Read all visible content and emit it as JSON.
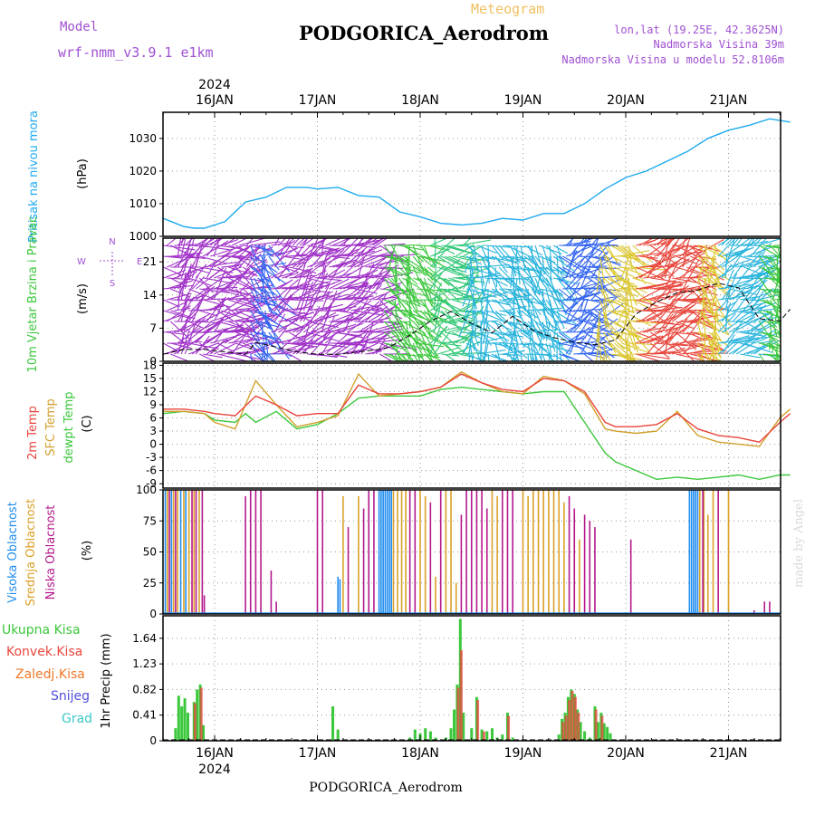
{
  "header": {
    "model_label": "Model",
    "model_value": "wrf-nmm_v3.9.1 e1km",
    "product": "Meteogram",
    "station": "PODGORICA_Aerodrom",
    "lonlat": "lon,lat (19.25E, 42.3625N)",
    "elevation": "Nadmorska Visina 39m",
    "model_elevation": "Nadmorska Visina u modelu 52.8106m",
    "footer_station": "PODGORICA_Aerodrom",
    "credit": "made by Angel",
    "year_top": "2024",
    "year_bottom": "2024"
  },
  "colors": {
    "pressure": "#1eaaee",
    "temp2m": "#e8463c",
    "sfc": "#d2a02d",
    "dewpt": "#3cc83c",
    "high_cloud": "#1e8cf0",
    "mid_cloud": "#dca028",
    "low_cloud": "#b4198c",
    "total_precip": "#3cc83c",
    "convective": "#e8463c",
    "freezing": "#f07828",
    "snow": "#5050dc",
    "hail": "#3cc8c8",
    "frame": "#000000",
    "grid": "#969696",
    "wind_label": "#a050d2"
  },
  "chart_data": [
    {
      "type": "line",
      "title": "Pritisak na nivou mora",
      "ylabel": "(hPa)",
      "ylim": [
        1000,
        1038
      ],
      "yticks": [
        "1000",
        "1010",
        "1020",
        "1030"
      ],
      "x_days": [
        "16JAN",
        "17JAN",
        "18JAN",
        "19JAN",
        "20JAN",
        "21JAN"
      ],
      "grid": true,
      "series": [
        {
          "name": "Pritisak na nivou mora",
          "x": [
            -0.5,
            -0.3,
            -0.2,
            -0.1,
            0.1,
            0.3,
            0.5,
            0.7,
            0.9,
            1.0,
            1.2,
            1.4,
            1.6,
            1.8,
            2.0,
            2.2,
            2.4,
            2.6,
            2.8,
            3.0,
            3.2,
            3.4,
            3.6,
            3.8,
            4.0,
            4.2,
            4.4,
            4.6,
            4.8,
            5.0,
            5.2,
            5.4,
            5.6
          ],
          "values": [
            1005.5,
            1003.0,
            1002.5,
            1002.5,
            1004.5,
            1010.5,
            1012.0,
            1015.0,
            1015.0,
            1014.5,
            1015.0,
            1012.5,
            1012.0,
            1007.5,
            1006.0,
            1004.0,
            1003.5,
            1004.0,
            1005.5,
            1005.0,
            1007.0,
            1007.0,
            1010.0,
            1014.5,
            1018.0,
            1020.0,
            1023.0,
            1026.0,
            1030.0,
            1032.5,
            1034.0,
            1036.0,
            1035.0
          ]
        }
      ]
    },
    {
      "type": "line",
      "title": "10m Vjetar Brzina i Pravac",
      "ylabel": "(m/s)",
      "ylim": [
        0,
        26
      ],
      "yticks": [
        "0",
        "7",
        "14",
        "21"
      ],
      "compass": [
        "N",
        "E",
        "S",
        "W"
      ],
      "grid": true,
      "series": [
        {
          "name": "Brzina",
          "x": [
            -0.5,
            -0.3,
            -0.1,
            0.1,
            0.3,
            0.4,
            0.6,
            0.8,
            1.0,
            1.2,
            1.4,
            1.6,
            1.7,
            1.9,
            2.1,
            2.3,
            2.5,
            2.7,
            2.9,
            3.1,
            3.3,
            3.5,
            3.7,
            3.9,
            4.1,
            4.3,
            4.5,
            4.7,
            4.9,
            5.1,
            5.3,
            5.5,
            5.6
          ],
          "values": [
            1.5,
            2.5,
            2.5,
            2.0,
            1.5,
            4.0,
            3.0,
            2.0,
            1.5,
            1.5,
            2.0,
            2.5,
            3.0,
            5.5,
            8.5,
            10.5,
            8.0,
            6.0,
            9.5,
            6.5,
            5.0,
            4.0,
            3.5,
            4.5,
            10.0,
            12.5,
            14.5,
            15.0,
            16.5,
            15.5,
            9.0,
            8.5,
            11.0
          ]
        }
      ],
      "arrow_groups": [
        {
          "x_range": [
            -0.5,
            0.35
          ],
          "color": "#a032c8"
        },
        {
          "x_range": [
            0.35,
            0.55
          ],
          "color": "#3264f0"
        },
        {
          "x_range": [
            0.55,
            1.65
          ],
          "color": "#a032c8"
        },
        {
          "x_range": [
            1.65,
            2.1
          ],
          "color": "#3cc83c"
        },
        {
          "x_range": [
            2.1,
            2.45
          ],
          "color": "#32c878"
        },
        {
          "x_range": [
            2.45,
            3.35
          ],
          "color": "#28b4dc"
        },
        {
          "x_range": [
            3.35,
            3.75
          ],
          "color": "#3264f0"
        },
        {
          "x_range": [
            3.75,
            4.1
          ],
          "color": "#dcc832"
        },
        {
          "x_range": [
            4.1,
            4.7
          ],
          "color": "#e8463c"
        },
        {
          "x_range": [
            4.7,
            4.9
          ],
          "color": "#dcc832"
        },
        {
          "x_range": [
            4.9,
            5.3
          ],
          "color": "#28b4dc"
        },
        {
          "x_range": [
            5.3,
            5.62
          ],
          "color": "#3cc83c"
        }
      ]
    },
    {
      "type": "line",
      "ylabels": [
        "2m Temp",
        "SFC Temp",
        "dewpt Temp"
      ],
      "unit": "(C)",
      "ylim": [
        -10,
        18.5
      ],
      "yticks": [
        "-9",
        "-6",
        "-3",
        "0",
        "3",
        "6",
        "9",
        "12",
        "15",
        "18"
      ],
      "grid": true,
      "series": [
        {
          "name": "2m Temp",
          "x": [
            -0.5,
            -0.3,
            -0.1,
            0.0,
            0.2,
            0.4,
            0.6,
            0.8,
            1.0,
            1.2,
            1.4,
            1.6,
            1.8,
            2.0,
            2.2,
            2.4,
            2.6,
            2.8,
            3.0,
            3.2,
            3.4,
            3.6,
            3.8,
            3.9,
            4.1,
            4.3,
            4.5,
            4.7,
            4.9,
            5.1,
            5.3,
            5.5,
            5.6
          ],
          "values": [
            8.0,
            8.0,
            7.5,
            7.0,
            6.5,
            11.0,
            9.0,
            6.5,
            7.0,
            7.0,
            13.5,
            11.5,
            11.5,
            12.0,
            13.0,
            16.0,
            14.0,
            12.5,
            12.0,
            15.0,
            14.5,
            12.0,
            5.0,
            4.0,
            4.0,
            4.5,
            7.0,
            3.5,
            2.0,
            1.5,
            0.5,
            5.0,
            7.0
          ]
        },
        {
          "name": "SFC Temp",
          "x": [
            -0.5,
            -0.3,
            -0.1,
            0.0,
            0.2,
            0.4,
            0.6,
            0.8,
            1.0,
            1.2,
            1.4,
            1.6,
            1.8,
            2.0,
            2.2,
            2.4,
            2.6,
            2.8,
            3.0,
            3.2,
            3.4,
            3.6,
            3.8,
            3.9,
            4.1,
            4.3,
            4.5,
            4.7,
            4.9,
            5.1,
            5.3,
            5.5,
            5.6
          ],
          "values": [
            7.5,
            7.5,
            7.0,
            5.0,
            3.5,
            14.5,
            9.0,
            4.0,
            5.0,
            6.5,
            16.0,
            11.0,
            11.5,
            12.0,
            13.0,
            16.5,
            14.0,
            12.0,
            11.5,
            15.5,
            14.5,
            11.5,
            3.5,
            3.0,
            2.5,
            3.0,
            7.5,
            2.0,
            0.5,
            0.0,
            -0.5,
            6.0,
            8.0
          ]
        },
        {
          "name": "dewpt Temp",
          "x": [
            -0.5,
            -0.3,
            -0.1,
            0.0,
            0.2,
            0.3,
            0.4,
            0.6,
            0.8,
            1.0,
            1.2,
            1.4,
            1.6,
            1.8,
            2.0,
            2.2,
            2.4,
            2.6,
            2.8,
            3.0,
            3.2,
            3.4,
            3.6,
            3.8,
            3.9,
            4.1,
            4.3,
            4.5,
            4.7,
            4.9,
            5.1,
            5.3,
            5.5,
            5.6
          ],
          "values": [
            7.0,
            7.5,
            7.0,
            5.5,
            5.0,
            7.0,
            5.0,
            7.5,
            3.5,
            4.5,
            7.0,
            10.5,
            11.0,
            11.0,
            11.0,
            12.5,
            13.0,
            12.5,
            12.0,
            11.5,
            12.0,
            12.0,
            5.0,
            -2.0,
            -4.0,
            -6.0,
            -8.0,
            -7.5,
            -8.0,
            -7.5,
            -7.0,
            -8.0,
            -7.0,
            -7.0
          ]
        }
      ]
    },
    {
      "type": "bar",
      "ylabels": [
        "Visoka Oblacnost",
        "Srednja Oblacnost",
        "Niska Oblacnost"
      ],
      "unit": "(%)",
      "ylim": [
        0,
        100
      ],
      "yticks": [
        "0",
        "25",
        "50",
        "75",
        "100"
      ],
      "grid": true,
      "series": [
        {
          "name": "Visoka Oblacnost",
          "x": [
            -0.48,
            -0.42,
            -0.33,
            -0.28,
            1.2,
            1.22,
            1.6,
            1.62,
            1.64,
            1.66,
            1.68,
            1.7,
            1.72,
            4.62,
            4.64,
            4.66,
            4.68,
            4.7
          ],
          "values": [
            100,
            100,
            100,
            100,
            30,
            28,
            100,
            100,
            100,
            100,
            100,
            100,
            100,
            100,
            100,
            100,
            100,
            100
          ]
        },
        {
          "name": "Srednja Oblacnost",
          "x": [
            -0.46,
            -0.4,
            -0.36,
            -0.3,
            -0.25,
            -0.2,
            -0.15,
            1.25,
            1.4,
            1.74,
            1.78,
            1.82,
            1.86,
            2.0,
            2.05,
            2.15,
            2.25,
            2.3,
            2.35,
            2.7,
            2.75,
            3.0,
            3.05,
            3.1,
            3.15,
            3.2,
            3.25,
            3.3,
            3.35,
            3.4,
            3.5,
            3.55,
            4.72,
            4.76,
            4.8,
            4.85,
            5.0
          ],
          "values": [
            100,
            100,
            100,
            100,
            100,
            100,
            100,
            95,
            95,
            100,
            100,
            100,
            100,
            100,
            95,
            30,
            100,
            100,
            25,
            100,
            95,
            100,
            95,
            100,
            100,
            100,
            100,
            100,
            100,
            90,
            80,
            60,
            100,
            100,
            80,
            100,
            100
          ]
        },
        {
          "name": "Niska Oblacnost",
          "x": [
            -0.44,
            -0.38,
            -0.22,
            -0.18,
            -0.12,
            -0.1,
            0.3,
            0.35,
            0.4,
            0.45,
            0.55,
            0.6,
            1.0,
            1.05,
            1.3,
            1.45,
            1.5,
            1.55,
            1.9,
            1.95,
            2.1,
            2.2,
            2.4,
            2.45,
            2.5,
            2.55,
            2.6,
            2.65,
            2.8,
            2.85,
            2.9,
            3.45,
            3.5,
            3.6,
            3.65,
            3.7,
            4.05,
            4.75,
            4.9,
            5.25,
            5.35,
            5.4
          ],
          "values": [
            100,
            100,
            100,
            100,
            100,
            15,
            95,
            100,
            100,
            100,
            35,
            10,
            100,
            100,
            70,
            85,
            100,
            100,
            100,
            100,
            90,
            100,
            80,
            100,
            100,
            100,
            100,
            85,
            100,
            100,
            100,
            95,
            85,
            80,
            75,
            70,
            60,
            100,
            100,
            3,
            10,
            10
          ]
        }
      ]
    },
    {
      "type": "bar",
      "ylabel": "1hr Precip (mm)",
      "legend": [
        "Ukupna Kisa",
        "Konvek.Kisa",
        "Zaledj.Kisa",
        "Snijeg",
        "Grad"
      ],
      "ylim": [
        0,
        2.0
      ],
      "yticks": [
        "0",
        "0.41",
        "0.82",
        "1.23",
        "1.64"
      ],
      "x_days": [
        "16JAN",
        "17JAN",
        "18JAN",
        "19JAN",
        "20JAN",
        "21JAN"
      ],
      "grid": true,
      "series": [
        {
          "name": "Ukupna Kisa",
          "x": [
            -0.38,
            -0.35,
            -0.32,
            -0.29,
            -0.26,
            -0.2,
            -0.17,
            -0.14,
            -0.11,
            1.15,
            1.2,
            1.9,
            1.95,
            2.0,
            2.05,
            2.1,
            2.15,
            2.25,
            2.3,
            2.33,
            2.36,
            2.39,
            2.42,
            2.5,
            2.55,
            2.6,
            2.65,
            2.7,
            2.75,
            2.8,
            2.85,
            2.9,
            3.35,
            3.38,
            3.41,
            3.44,
            3.47,
            3.5,
            3.53,
            3.56,
            3.6,
            3.65,
            3.7,
            3.73,
            3.76,
            3.79,
            3.82,
            3.85
          ],
          "values": [
            0.2,
            0.72,
            0.55,
            0.68,
            0.45,
            0.62,
            0.82,
            0.9,
            0.25,
            0.55,
            0.18,
            0.05,
            0.18,
            0.12,
            0.2,
            0.15,
            0.05,
            0.05,
            0.2,
            0.5,
            0.9,
            1.95,
            0.45,
            0.2,
            0.7,
            0.18,
            0.15,
            0.2,
            0.05,
            0.1,
            0.45,
            0.05,
            0.1,
            0.35,
            0.45,
            0.7,
            0.82,
            0.75,
            0.5,
            0.3,
            0.15,
            0.05,
            0.55,
            0.3,
            0.45,
            0.28,
            0.22,
            0.12
          ]
        },
        {
          "name": "Konvek.Kisa",
          "x": [
            -0.19,
            -0.13,
            2.37,
            2.4,
            2.56,
            2.62,
            2.86,
            3.39,
            3.42,
            3.45,
            3.48,
            3.51,
            3.54,
            3.71,
            3.77
          ],
          "values": [
            0.6,
            0.85,
            0.85,
            1.45,
            0.65,
            0.15,
            0.4,
            0.3,
            0.4,
            0.65,
            0.8,
            0.7,
            0.45,
            0.5,
            0.4
          ]
        }
      ]
    }
  ]
}
